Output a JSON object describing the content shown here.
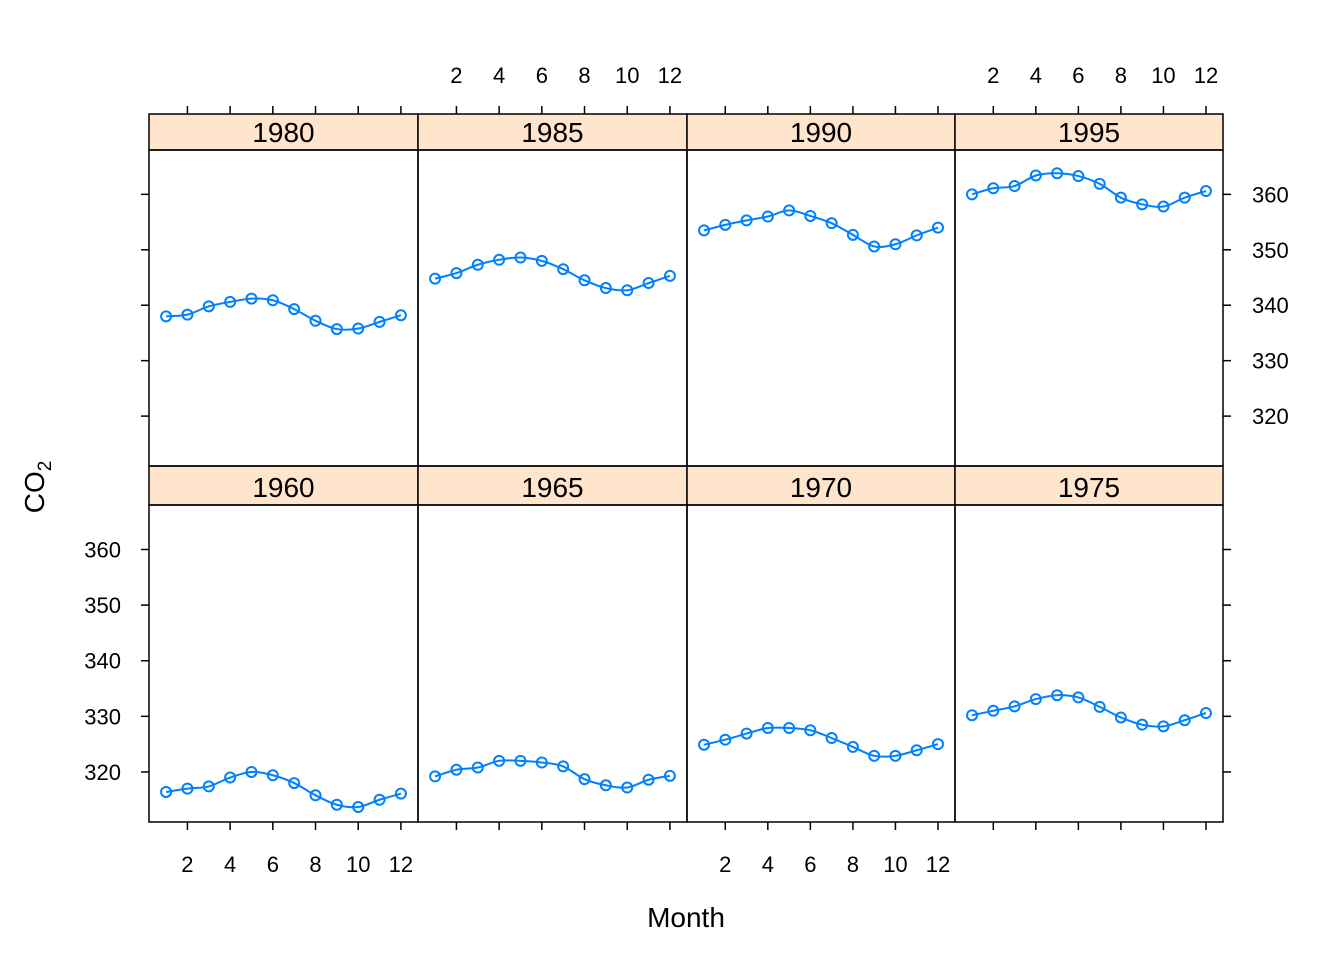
{
  "chart_data": {
    "type": "line",
    "layout": "lattice-2x4",
    "xlabel": "Month",
    "ylabel": "CO",
    "ylabel_subscript": "2",
    "x_ticks": [
      2,
      4,
      6,
      8,
      10,
      12
    ],
    "y_ticks": [
      320,
      330,
      340,
      350,
      360
    ],
    "xlim": [
      0.2,
      12.8
    ],
    "ylim": [
      311,
      368
    ],
    "grid": false,
    "legend": "none",
    "colors": {
      "line": "#0080ff",
      "strip": "#ffe5cc",
      "frame": "#000000"
    },
    "panels": [
      {
        "name": "1960",
        "row": "bottom",
        "col": 0,
        "x": [
          1,
          2,
          3,
          4,
          5,
          6,
          7,
          8,
          9,
          10,
          11,
          12
        ],
        "values": [
          316.4,
          317.0,
          317.4,
          319.0,
          320.0,
          319.4,
          318.0,
          315.8,
          314.1,
          313.7,
          315.0,
          316.1
        ]
      },
      {
        "name": "1965",
        "row": "bottom",
        "col": 1,
        "x": [
          1,
          2,
          3,
          4,
          5,
          6,
          7,
          8,
          9,
          10,
          11,
          12
        ],
        "values": [
          319.2,
          320.4,
          320.8,
          322.0,
          322.0,
          321.7,
          321.0,
          318.7,
          317.6,
          317.2,
          318.6,
          319.3
        ]
      },
      {
        "name": "1970",
        "row": "bottom",
        "col": 2,
        "x": [
          1,
          2,
          3,
          4,
          5,
          6,
          7,
          8,
          9,
          10,
          11,
          12
        ],
        "values": [
          324.9,
          325.8,
          326.9,
          327.9,
          327.9,
          327.5,
          326.1,
          324.5,
          322.9,
          322.9,
          323.9,
          325.0
        ]
      },
      {
        "name": "1975",
        "row": "bottom",
        "col": 3,
        "x": [
          1,
          2,
          3,
          4,
          5,
          6,
          7,
          8,
          9,
          10,
          11,
          12
        ],
        "values": [
          330.2,
          331.0,
          331.8,
          333.1,
          333.8,
          333.4,
          331.7,
          329.8,
          328.5,
          328.2,
          329.3,
          330.6
        ]
      },
      {
        "name": "1980",
        "row": "top",
        "col": 0,
        "x": [
          1,
          2,
          3,
          4,
          5,
          6,
          7,
          8,
          9,
          10,
          11,
          12
        ],
        "values": [
          338.0,
          338.3,
          339.8,
          340.6,
          341.2,
          340.9,
          339.3,
          337.2,
          335.7,
          335.8,
          337.0,
          338.2
        ]
      },
      {
        "name": "1985",
        "row": "top",
        "col": 1,
        "x": [
          1,
          2,
          3,
          4,
          5,
          6,
          7,
          8,
          9,
          10,
          11,
          12
        ],
        "values": [
          344.8,
          345.8,
          347.3,
          348.2,
          348.6,
          348.0,
          346.5,
          344.5,
          343.1,
          342.7,
          344.0,
          345.3
        ]
      },
      {
        "name": "1990",
        "row": "top",
        "col": 2,
        "x": [
          1,
          2,
          3,
          4,
          5,
          6,
          7,
          8,
          9,
          10,
          11,
          12
        ],
        "values": [
          353.5,
          354.5,
          355.3,
          356.0,
          357.1,
          356.1,
          354.8,
          352.7,
          350.6,
          351.0,
          352.6,
          354.0
        ]
      },
      {
        "name": "1995",
        "row": "top",
        "col": 3,
        "x": [
          1,
          2,
          3,
          4,
          5,
          6,
          7,
          8,
          9,
          10,
          11,
          12
        ],
        "values": [
          360.0,
          361.1,
          361.5,
          363.4,
          363.8,
          363.3,
          361.9,
          359.4,
          358.2,
          357.8,
          359.4,
          360.6
        ]
      }
    ]
  }
}
